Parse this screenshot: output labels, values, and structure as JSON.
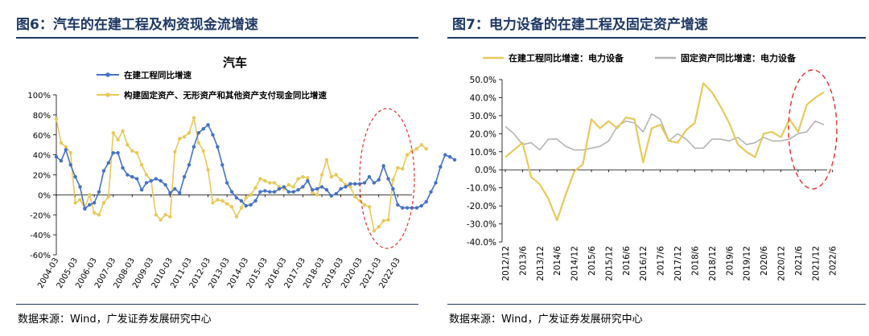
{
  "left_panel": {
    "figure_title": "图6：汽车的在建工程及构资现金流增速",
    "source": "数据来源：Wind，广发证券发展研究中心"
  },
  "right_panel": {
    "figure_title": "图7：电力设备的在建工程及固定资产增速",
    "source": "数据来源：Wind，广发证券发展研究中心"
  },
  "chart_data": [
    {
      "type": "line",
      "title": "汽车",
      "ylim": [
        -60,
        100
      ],
      "yticks": [
        "100%",
        "80%",
        "60%",
        "40%",
        "20%",
        "0%",
        "-20%",
        "-40%",
        "-60%"
      ],
      "ytick_values": [
        100,
        80,
        60,
        40,
        20,
        0,
        -20,
        -40,
        -60
      ],
      "xticks": [
        "2004-03",
        "2005-03",
        "2006-03",
        "2007-03",
        "2008-03",
        "2009-03",
        "2010-03",
        "2011-03",
        "2012-03",
        "2013-03",
        "2014-03",
        "2015-03",
        "2016-03",
        "2017-03",
        "2018-03",
        "2019-03",
        "2020-03",
        "2021-03",
        "2022-03"
      ],
      "x_start": 2004.0,
      "x_end": 2022.75,
      "x_step": 0.25,
      "legend_position": "top-left",
      "series": [
        {
          "name": "在建工程同比增速",
          "color": "#4472c4",
          "values": [
            38,
            34,
            45,
            30,
            18,
            8,
            -14,
            -10,
            -8,
            3,
            24,
            32,
            42,
            42,
            27,
            20,
            18,
            16,
            5,
            12,
            14,
            16,
            14,
            10,
            2,
            6,
            2,
            18,
            30,
            48,
            62,
            66,
            70,
            60,
            48,
            30,
            12,
            3,
            -3,
            -6,
            -11,
            -10,
            -6,
            3,
            4,
            3,
            3,
            6,
            8,
            3,
            3,
            5,
            8,
            14,
            5,
            6,
            8,
            5,
            -1,
            1,
            6,
            8,
            11,
            11,
            11,
            12,
            18,
            12,
            15,
            29,
            16,
            6,
            -10,
            -13,
            -13,
            -13,
            -13,
            -11,
            -7,
            3,
            12,
            28,
            40,
            38,
            35
          ]
        },
        {
          "name": "构建固定资产、无形资产和其他资产支付现金同比增速",
          "color": "#e7c95a",
          "values": [
            76,
            52,
            48,
            42,
            -8,
            -5,
            -13,
            0,
            -18,
            -20,
            -8,
            -2,
            62,
            55,
            64,
            50,
            44,
            42,
            30,
            20,
            14,
            -20,
            -25,
            -20,
            -22,
            43,
            56,
            58,
            62,
            77,
            52,
            44,
            25,
            -8,
            -5,
            -6,
            -9,
            -12,
            -22,
            -13,
            -3,
            0,
            7,
            16,
            14,
            12,
            12,
            8,
            6,
            10,
            8,
            16,
            18,
            17,
            2,
            0,
            20,
            35,
            18,
            20,
            15,
            10,
            8,
            -2,
            -6,
            -10,
            -12,
            -36,
            -32,
            -26,
            -25,
            15,
            27,
            26,
            40,
            44,
            46,
            50,
            46
          ]
        }
      ]
    },
    {
      "type": "line",
      "title": "",
      "ylim": [
        -40,
        50
      ],
      "yticks": [
        "50.0%",
        "40.0%",
        "30.0%",
        "20.0%",
        "10.0%",
        "0.0%",
        "-10.0%",
        "-20.0%",
        "-30.0%",
        "-40.0%"
      ],
      "ytick_values": [
        50,
        40,
        30,
        20,
        10,
        0,
        -10,
        -20,
        -30,
        -40
      ],
      "xticks": [
        "2012/12",
        "2013/6",
        "2013/12",
        "2014/6",
        "2014/12",
        "2015/6",
        "2015/12",
        "2016/6",
        "2016/12",
        "2017/6",
        "2017/12",
        "2018/6",
        "2018/12",
        "2019/6",
        "2019/12",
        "2020/6",
        "2020/12",
        "2021/6",
        "2021/12",
        "2022/6"
      ],
      "x_step_label": "half-year",
      "legend_position": "top",
      "series": [
        {
          "name": "在建工程同比增速：电力设备",
          "color": "#e7c95a",
          "values": [
            7,
            11,
            15,
            -4,
            -8,
            -16,
            -28,
            -14,
            -1,
            3,
            28,
            23,
            27,
            23,
            29,
            28,
            4,
            23,
            25,
            16,
            15,
            22,
            26,
            48,
            43,
            35,
            26,
            14,
            10,
            7,
            20,
            21,
            18,
            28,
            21,
            36,
            40,
            43
          ]
        },
        {
          "name": "固定资产同比增速：电力设备",
          "color": "#b4b4b4",
          "values": [
            24,
            20,
            14,
            15,
            11,
            17,
            17,
            13,
            11,
            11,
            12,
            13,
            16,
            24,
            27,
            26,
            21,
            31,
            28,
            16,
            20,
            17,
            12,
            12,
            17,
            17,
            16,
            18,
            14,
            15,
            18,
            16,
            16,
            17,
            20,
            21,
            27,
            25
          ]
        }
      ]
    }
  ]
}
